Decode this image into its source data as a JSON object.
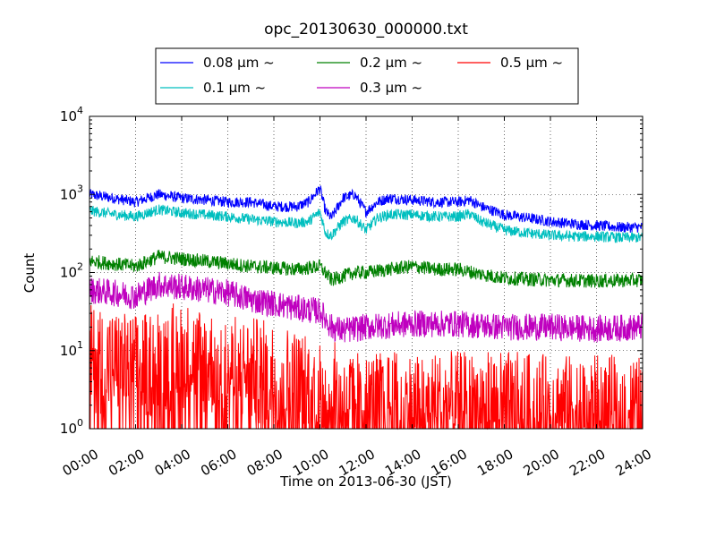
{
  "chart_data": {
    "type": "line",
    "title": "opc_20130630_000000.txt",
    "xlabel": "Time on 2013-06-30 (JST)",
    "ylabel": "Count",
    "y_scale": "log",
    "ylim": [
      1,
      10000
    ],
    "xlim": [
      "00:00",
      "24:00"
    ],
    "grid": true,
    "legend_placement": "top-center",
    "x_ticks": [
      "00:00",
      "02:00",
      "04:00",
      "06:00",
      "08:00",
      "10:00",
      "12:00",
      "14:00",
      "16:00",
      "18:00",
      "20:00",
      "22:00",
      "24:00"
    ],
    "y_ticks": [
      {
        "base": "10",
        "exp": "0"
      },
      {
        "base": "10",
        "exp": "1"
      },
      {
        "base": "10",
        "exp": "2"
      },
      {
        "base": "10",
        "exp": "3"
      },
      {
        "base": "10",
        "exp": "4"
      }
    ],
    "series": [
      {
        "name": "0.08 μm ~",
        "color": "#0000ff",
        "x": [
          "00:00",
          "01:00",
          "02:00",
          "03:00",
          "04:00",
          "05:00",
          "06:00",
          "07:00",
          "08:00",
          "09:00",
          "09:30",
          "10:00",
          "10:15",
          "10:30",
          "11:00",
          "11:30",
          "12:00",
          "12:30",
          "13:00",
          "14:00",
          "15:00",
          "16:00",
          "16:30",
          "17:00",
          "18:00",
          "19:00",
          "20:00",
          "21:00",
          "22:00",
          "23:00",
          "24:00"
        ],
        "y": [
          1000,
          900,
          800,
          1000,
          900,
          850,
          800,
          800,
          700,
          700,
          800,
          1200,
          600,
          500,
          900,
          1000,
          600,
          800,
          900,
          850,
          800,
          800,
          850,
          700,
          550,
          500,
          450,
          420,
          400,
          380,
          380
        ],
        "noise": 0.1
      },
      {
        "name": "0.1 μm ~",
        "color": "#00bfbf",
        "x": [
          "00:00",
          "01:00",
          "02:00",
          "03:00",
          "04:00",
          "05:00",
          "06:00",
          "07:00",
          "08:00",
          "09:00",
          "09:30",
          "10:00",
          "10:15",
          "10:30",
          "11:00",
          "11:30",
          "12:00",
          "12:30",
          "13:00",
          "14:00",
          "15:00",
          "16:00",
          "16:30",
          "17:00",
          "18:00",
          "19:00",
          "20:00",
          "21:00",
          "22:00",
          "23:00",
          "24:00"
        ],
        "y": [
          620,
          560,
          520,
          640,
          580,
          550,
          520,
          480,
          450,
          430,
          450,
          600,
          320,
          300,
          450,
          500,
          350,
          500,
          550,
          550,
          520,
          520,
          560,
          450,
          350,
          320,
          300,
          290,
          290,
          280,
          280
        ],
        "noise": 0.1
      },
      {
        "name": "0.2 μm ~",
        "color": "#008000",
        "x": [
          "00:00",
          "01:00",
          "02:00",
          "03:00",
          "04:00",
          "05:00",
          "06:00",
          "07:00",
          "08:00",
          "09:00",
          "10:00",
          "10:30",
          "11:00",
          "11:30",
          "12:00",
          "13:00",
          "14:00",
          "15:00",
          "16:00",
          "17:00",
          "18:00",
          "20:00",
          "22:00",
          "24:00"
        ],
        "y": [
          140,
          130,
          120,
          160,
          150,
          140,
          130,
          120,
          115,
          110,
          120,
          80,
          90,
          100,
          100,
          110,
          120,
          110,
          110,
          95,
          85,
          80,
          78,
          80
        ],
        "noise": 0.13
      },
      {
        "name": "0.3 μm ~",
        "color": "#bf00bf",
        "x": [
          "00:00",
          "01:00",
          "02:00",
          "03:00",
          "04:00",
          "05:00",
          "06:00",
          "07:00",
          "08:00",
          "09:00",
          "10:00",
          "10:30",
          "11:00",
          "12:00",
          "14:00",
          "16:00",
          "18:00",
          "20:00",
          "22:00",
          "24:00"
        ],
        "y": [
          60,
          55,
          50,
          70,
          65,
          60,
          55,
          45,
          40,
          35,
          32,
          20,
          18,
          20,
          22,
          22,
          20,
          20,
          19,
          20
        ],
        "noise": 0.25
      },
      {
        "name": "0.5 μm ~",
        "color": "#ff0000",
        "x": [
          "00:00",
          "02:00",
          "04:00",
          "06:00",
          "08:00",
          "10:00",
          "12:00",
          "14:00",
          "16:00",
          "18:00",
          "20:00",
          "22:00",
          "24:00"
        ],
        "y": [
          8,
          6,
          9,
          6,
          5,
          3,
          2,
          2,
          2,
          2,
          1.8,
          1.8,
          1.8
        ],
        "noise": 1.0
      }
    ]
  }
}
